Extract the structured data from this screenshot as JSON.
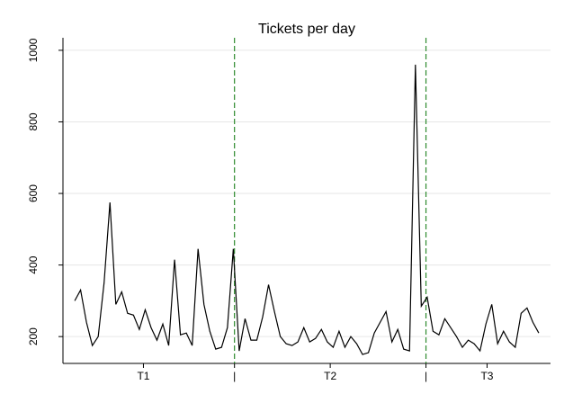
{
  "chart_data": {
    "type": "line",
    "title": "Tickets per day",
    "x": [
      1,
      2,
      3,
      4,
      5,
      6,
      7,
      8,
      9,
      10,
      11,
      12,
      13,
      14,
      15,
      16,
      17,
      18,
      19,
      20,
      21,
      22,
      23,
      24,
      25,
      26,
      27,
      28,
      29,
      30,
      31,
      32,
      33,
      34,
      35,
      36,
      37,
      38,
      39,
      40,
      41,
      42,
      43,
      44,
      45,
      46,
      47,
      48,
      49,
      50,
      51,
      52,
      53,
      54,
      55,
      56,
      57,
      58,
      59,
      60,
      61,
      62,
      63,
      64,
      65,
      66,
      67,
      68,
      69,
      70,
      71,
      72,
      73,
      74,
      75,
      76,
      77,
      78,
      79,
      80
    ],
    "series": [
      {
        "name": "Tickets",
        "color": "#000000",
        "values": [
          300,
          330,
          240,
          175,
          200,
          350,
          575,
          290,
          325,
          265,
          260,
          220,
          275,
          225,
          190,
          235,
          175,
          415,
          205,
          210,
          175,
          445,
          290,
          215,
          165,
          170,
          225,
          445,
          160,
          250,
          190,
          190,
          255,
          345,
          270,
          200,
          180,
          175,
          185,
          225,
          185,
          195,
          220,
          185,
          170,
          215,
          170,
          200,
          180,
          150,
          155,
          210,
          240,
          270,
          185,
          220,
          165,
          160,
          960,
          285,
          310,
          215,
          205,
          250,
          225,
          200,
          170,
          190,
          180,
          160,
          235,
          290,
          180,
          215,
          185,
          170,
          265,
          280,
          240,
          210
        ]
      }
    ],
    "xlim": [
      -1,
      82
    ],
    "ylim": [
      125,
      1035
    ],
    "xticks": [
      {
        "value": 12.7,
        "label": "T1"
      },
      {
        "value": 28.2,
        "label": "|"
      },
      {
        "value": 44.5,
        "label": "T2"
      },
      {
        "value": 60.8,
        "label": "|"
      },
      {
        "value": 71.2,
        "label": "T3"
      }
    ],
    "yticks": [
      200,
      400,
      600,
      800,
      1000
    ],
    "grid": true,
    "vlines": [
      28.2,
      60.8
    ],
    "vline_color": "#2e8b2e"
  }
}
